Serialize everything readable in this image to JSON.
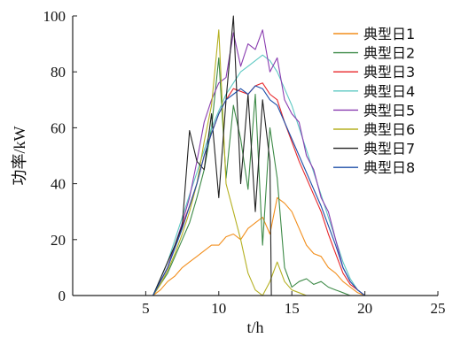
{
  "chart_data": {
    "type": "line",
    "xlabel": "t/h",
    "ylabel": "功率/kW",
    "xlim": [
      0,
      25
    ],
    "ylim": [
      0,
      100
    ],
    "xticks": [
      5,
      10,
      15,
      20,
      25
    ],
    "yticks": [
      0,
      20,
      40,
      60,
      80,
      100
    ],
    "legend_position": "top-right",
    "grid": false,
    "series": [
      {
        "name": "典型日1",
        "color": "#f28e1c",
        "x": [
          0,
          5.5,
          6,
          6.5,
          7,
          7.5,
          8,
          8.5,
          9,
          9.5,
          10,
          10.5,
          11,
          11.5,
          12,
          12.5,
          13,
          13.5,
          14,
          14.5,
          15,
          15.5,
          16,
          16.5,
          17,
          17.5,
          18,
          18.5,
          19,
          19.5,
          20,
          24
        ],
        "y": [
          0,
          0,
          2,
          5,
          7,
          10,
          12,
          14,
          16,
          18,
          18,
          21,
          22,
          20,
          24,
          26,
          28,
          22,
          35,
          33,
          30,
          24,
          18,
          15,
          14,
          10,
          8,
          5,
          3,
          1,
          0,
          0
        ]
      },
      {
        "name": "典型日2",
        "color": "#3d8a47",
        "x": [
          0,
          5.5,
          6,
          6.5,
          7,
          7.5,
          8,
          8.5,
          9,
          9.5,
          10,
          10.5,
          11,
          11.5,
          12,
          12.5,
          13,
          13.5,
          14,
          14.5,
          15,
          15.5,
          16,
          16.5,
          17,
          17.5,
          18,
          18.5,
          19,
          24
        ],
        "y": [
          0,
          0,
          4,
          8,
          14,
          20,
          26,
          35,
          45,
          60,
          85,
          42,
          68,
          56,
          38,
          72,
          18,
          60,
          42,
          10,
          3,
          5,
          6,
          4,
          5,
          3,
          2,
          1,
          0,
          0
        ]
      },
      {
        "name": "典型日3",
        "color": "#e8262a",
        "x": [
          0,
          5.5,
          6,
          6.5,
          7,
          7.5,
          8,
          8.5,
          9,
          9.5,
          10,
          10.5,
          11,
          11.5,
          12,
          12.5,
          13,
          13.5,
          14,
          14.5,
          15,
          15.5,
          16,
          16.5,
          17,
          17.5,
          18,
          18.5,
          19,
          19.5,
          20,
          24
        ],
        "y": [
          0,
          0,
          5,
          10,
          18,
          25,
          32,
          40,
          50,
          58,
          65,
          70,
          74,
          73,
          72,
          75,
          76,
          72,
          70,
          62,
          55,
          48,
          42,
          36,
          30,
          22,
          15,
          8,
          4,
          2,
          0,
          0
        ]
      },
      {
        "name": "典型日4",
        "color": "#5ec9c3",
        "x": [
          0,
          5.5,
          6,
          6.5,
          7,
          7.5,
          8,
          8.5,
          9,
          9.5,
          10,
          10.5,
          11,
          11.5,
          12,
          12.5,
          13,
          13.5,
          14,
          14.5,
          15,
          15.5,
          16,
          16.5,
          17,
          17.5,
          18,
          18.5,
          19,
          19.5,
          20,
          24
        ],
        "y": [
          0,
          0,
          6,
          12,
          20,
          28,
          36,
          44,
          52,
          60,
          66,
          72,
          76,
          80,
          82,
          84,
          86,
          84,
          80,
          74,
          68,
          60,
          52,
          44,
          36,
          28,
          20,
          12,
          6,
          2,
          0,
          0
        ]
      },
      {
        "name": "典型日5",
        "color": "#8a3db0",
        "x": [
          0,
          5.5,
          6,
          6.5,
          7,
          7.5,
          8,
          8.5,
          9,
          9.5,
          10,
          10.5,
          11,
          11.5,
          12,
          12.5,
          13,
          13.5,
          14,
          14.5,
          15,
          15.5,
          16,
          16.5,
          17,
          17.5,
          18,
          18.5,
          19,
          19.5,
          20,
          24
        ],
        "y": [
          0,
          0,
          5,
          10,
          18,
          26,
          35,
          48,
          62,
          70,
          76,
          78,
          94,
          82,
          90,
          88,
          95,
          80,
          85,
          70,
          65,
          62,
          50,
          45,
          35,
          30,
          20,
          10,
          5,
          2,
          0,
          0
        ]
      },
      {
        "name": "典型日6",
        "color": "#b5b022",
        "x": [
          0,
          5.5,
          6,
          6.5,
          7,
          7.5,
          8,
          8.5,
          9,
          9.5,
          10,
          10.5,
          11,
          11.5,
          12,
          12.5,
          13,
          13.5,
          14,
          14.5,
          15,
          15.5,
          16,
          16.5,
          17,
          17.5,
          18,
          18.5,
          19,
          24
        ],
        "y": [
          0,
          0,
          4,
          9,
          15,
          22,
          30,
          40,
          55,
          68,
          95,
          40,
          30,
          20,
          8,
          2,
          0,
          5,
          12,
          5,
          2,
          1,
          0,
          0,
          0,
          0,
          0,
          0,
          0,
          0
        ]
      },
      {
        "name": "典型日7",
        "color": "#222222",
        "x": [
          0,
          5.5,
          6,
          6.5,
          7,
          7.5,
          8,
          8.5,
          9,
          9.5,
          10,
          10.5,
          11,
          11.5,
          12,
          12.5,
          13,
          13.5,
          13.6,
          14,
          14.5,
          15,
          15.5,
          16,
          16.5,
          17,
          17.5,
          18,
          18.5,
          19,
          24
        ],
        "y": [
          0,
          0,
          6,
          12,
          18,
          25,
          59,
          48,
          45,
          65,
          35,
          70,
          100,
          40,
          72,
          30,
          70,
          48,
          0,
          0,
          0,
          0,
          0,
          0,
          0,
          0,
          0,
          0,
          0,
          0,
          0
        ]
      },
      {
        "name": "典型日8",
        "color": "#1f4fa8",
        "x": [
          0,
          5.5,
          6,
          6.5,
          7,
          7.5,
          8,
          8.5,
          9,
          9.5,
          10,
          10.5,
          11,
          11.5,
          12,
          12.5,
          13,
          13.5,
          14,
          14.5,
          15,
          15.5,
          16,
          16.5,
          17,
          17.5,
          18,
          18.5,
          19,
          19.5,
          20,
          24
        ],
        "y": [
          0,
          0,
          5,
          10,
          17,
          24,
          32,
          40,
          50,
          58,
          65,
          70,
          72,
          74,
          72,
          75,
          74,
          70,
          68,
          62,
          56,
          50,
          44,
          38,
          32,
          25,
          18,
          10,
          5,
          2,
          0,
          0
        ]
      }
    ]
  }
}
